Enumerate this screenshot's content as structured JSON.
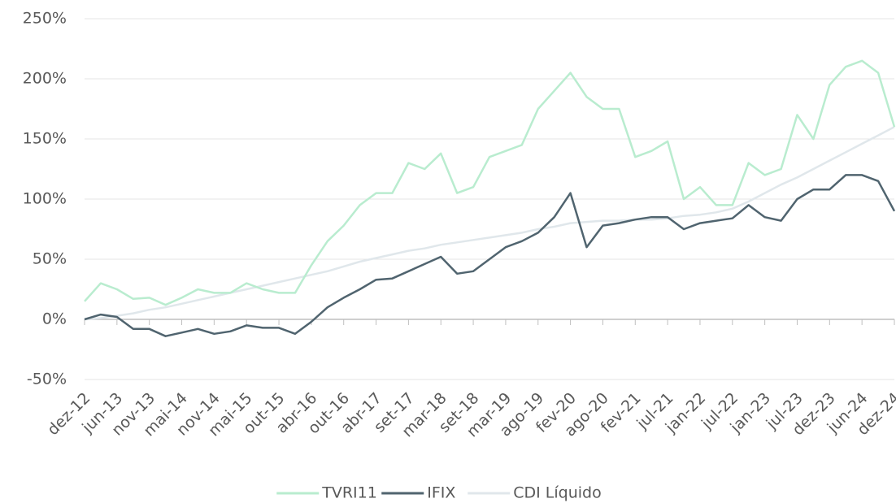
{
  "chart_data": {
    "type": "line",
    "categories": [
      "dez-12",
      null,
      "jun-13",
      null,
      "nov-13",
      null,
      "mai-14",
      null,
      "nov-14",
      null,
      "mai-15",
      null,
      "out-15",
      null,
      "abr-16",
      null,
      "out-16",
      null,
      "abr-17",
      null,
      "set-17",
      null,
      "mar-18",
      null,
      "set-18",
      null,
      "mar-19",
      null,
      "ago-19",
      null,
      "fev-20",
      null,
      "ago-20",
      null,
      "fev-21",
      null,
      "jul-21",
      null,
      "jan-22",
      null,
      "jul-22",
      null,
      "jan-23",
      null,
      "jul-23",
      null,
      "dez-23",
      null,
      "jun-24",
      null,
      "dez-24"
    ],
    "series": [
      {
        "name": "TVRI11",
        "color": "#b9eccf",
        "values": [
          15,
          30,
          25,
          17,
          18,
          12,
          18,
          25,
          22,
          22,
          30,
          25,
          22,
          22,
          45,
          65,
          78,
          95,
          105,
          105,
          130,
          125,
          138,
          105,
          110,
          135,
          140,
          145,
          175,
          190,
          205,
          185,
          175,
          175,
          135,
          140,
          148,
          100,
          110,
          95,
          95,
          130,
          120,
          125,
          170,
          150,
          195,
          210,
          215,
          205,
          160
        ]
      },
      {
        "name": "IFIX",
        "color": "#50646f",
        "values": [
          0,
          4,
          2,
          -8,
          -8,
          -14,
          -11,
          -8,
          -12,
          -10,
          -5,
          -7,
          -7,
          -12,
          -2,
          10,
          18,
          25,
          33,
          34,
          40,
          46,
          52,
          38,
          40,
          50,
          60,
          65,
          72,
          85,
          105,
          60,
          78,
          80,
          83,
          85,
          85,
          75,
          80,
          82,
          84,
          95,
          85,
          82,
          100,
          108,
          108,
          120,
          120,
          115,
          90
        ]
      },
      {
        "name": "CDI Líquido",
        "color": "#e0e7eb",
        "values": [
          0,
          1,
          3,
          5,
          8,
          10,
          13,
          16,
          19,
          22,
          25,
          28,
          31,
          34,
          37,
          40,
          44,
          48,
          51,
          54,
          57,
          59,
          62,
          64,
          66,
          68,
          70,
          72,
          75,
          77,
          80,
          81,
          82,
          82,
          83,
          83,
          84,
          86,
          87,
          89,
          92,
          98,
          105,
          112,
          118,
          125,
          132,
          139,
          146,
          153,
          160
        ]
      }
    ],
    "ylim": [
      -50,
      250
    ],
    "yticks": [
      {
        "value": -50,
        "label": "-50%"
      },
      {
        "value": 0,
        "label": "0%"
      },
      {
        "value": 50,
        "label": "50%"
      },
      {
        "value": 100,
        "label": "100%"
      },
      {
        "value": 150,
        "label": "150%"
      },
      {
        "value": 200,
        "label": "200%"
      },
      {
        "value": 250,
        "label": "250%"
      }
    ],
    "grid": true,
    "legend": "bottom"
  }
}
